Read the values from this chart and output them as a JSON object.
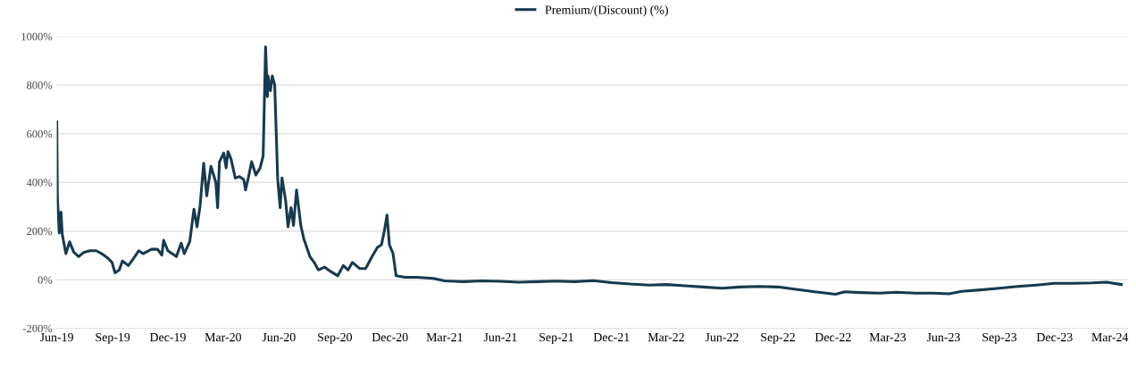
{
  "chart_data": {
    "type": "line",
    "legend": "top",
    "xlim": [
      "2019-06-01",
      "2024-03-31"
    ],
    "xticks": [
      {
        "value": "2019-06-01",
        "label": "Jun-19"
      },
      {
        "value": "2019-09-01",
        "label": "Sep-19"
      },
      {
        "value": "2019-12-01",
        "label": "Dec-19"
      },
      {
        "value": "2020-03-01",
        "label": "Mar-20"
      },
      {
        "value": "2020-06-01",
        "label": "Jun-20"
      },
      {
        "value": "2020-09-01",
        "label": "Sep-20"
      },
      {
        "value": "2020-12-01",
        "label": "Dec-20"
      },
      {
        "value": "2021-03-01",
        "label": "Mar-21"
      },
      {
        "value": "2021-06-01",
        "label": "Jun-21"
      },
      {
        "value": "2021-09-01",
        "label": "Sep-21"
      },
      {
        "value": "2021-12-01",
        "label": "Dec-21"
      },
      {
        "value": "2022-03-01",
        "label": "Mar-22"
      },
      {
        "value": "2022-06-01",
        "label": "Jun-22"
      },
      {
        "value": "2022-09-01",
        "label": "Sep-22"
      },
      {
        "value": "2022-12-01",
        "label": "Dec-22"
      },
      {
        "value": "2023-03-01",
        "label": "Mar-23"
      },
      {
        "value": "2023-06-01",
        "label": "Jun-23"
      },
      {
        "value": "2023-09-01",
        "label": "Sep-23"
      },
      {
        "value": "2023-12-01",
        "label": "Dec-23"
      },
      {
        "value": "2024-03-01",
        "label": "Mar-24"
      }
    ],
    "ylim": [
      -200,
      1000
    ],
    "yticks": [
      {
        "value": -200,
        "label": "-200%"
      },
      {
        "value": 0,
        "label": "0%"
      },
      {
        "value": 200,
        "label": "200%"
      },
      {
        "value": 400,
        "label": "400%"
      },
      {
        "value": 600,
        "label": "600%"
      },
      {
        "value": 800,
        "label": "800%"
      },
      {
        "value": 1000,
        "label": "1000%"
      }
    ],
    "grid": "y",
    "series": [
      {
        "name": "Premium/(Discount) (%)",
        "color": "#163a4f",
        "x": [
          "2019-06-01",
          "2019-06-02",
          "2019-06-05",
          "2019-06-08",
          "2019-06-10",
          "2019-06-16",
          "2019-06-22",
          "2019-06-29",
          "2019-07-07",
          "2019-07-16",
          "2019-07-26",
          "2019-08-05",
          "2019-08-14",
          "2019-08-24",
          "2019-08-31",
          "2019-09-05",
          "2019-09-12",
          "2019-09-17",
          "2019-09-27",
          "2019-10-06",
          "2019-10-14",
          "2019-10-21",
          "2019-11-04",
          "2019-11-14",
          "2019-11-21",
          "2019-11-24",
          "2019-12-01",
          "2019-12-15",
          "2019-12-23",
          "2019-12-28",
          "2020-01-06",
          "2020-01-13",
          "2020-01-18",
          "2020-01-23",
          "2020-01-29",
          "2020-02-03",
          "2020-02-10",
          "2020-02-18",
          "2020-02-21",
          "2020-02-24",
          "2020-03-02",
          "2020-03-06",
          "2020-03-09",
          "2020-03-14",
          "2020-03-21",
          "2020-03-28",
          "2020-04-04",
          "2020-04-07",
          "2020-04-12",
          "2020-04-17",
          "2020-04-24",
          "2020-05-01",
          "2020-05-06",
          "2020-05-10",
          "2020-05-13",
          "2020-05-14",
          "2020-05-18",
          "2020-05-21",
          "2020-05-25",
          "2020-05-30",
          "2020-06-03",
          "2020-06-06",
          "2020-06-12",
          "2020-06-16",
          "2020-06-21",
          "2020-06-25",
          "2020-06-30",
          "2020-07-07",
          "2020-07-12",
          "2020-07-22",
          "2020-07-29",
          "2020-08-05",
          "2020-08-15",
          "2020-08-25",
          "2020-09-06",
          "2020-09-15",
          "2020-09-23",
          "2020-09-30",
          "2020-10-12",
          "2020-10-22",
          "2020-10-31",
          "2020-11-10",
          "2020-11-17",
          "2020-11-22",
          "2020-11-26",
          "2020-11-30",
          "2020-12-06",
          "2020-12-11",
          "2020-12-26",
          "2021-01-15",
          "2021-02-10",
          "2021-03-01",
          "2021-04-01",
          "2021-05-01",
          "2021-06-01",
          "2021-07-01",
          "2021-08-01",
          "2021-09-01",
          "2021-10-01",
          "2021-11-01",
          "2021-12-01",
          "2022-01-01",
          "2022-02-01",
          "2022-03-01",
          "2022-04-01",
          "2022-05-01",
          "2022-06-01",
          "2022-07-01",
          "2022-08-01",
          "2022-09-01",
          "2022-10-01",
          "2022-11-01",
          "2022-12-05",
          "2022-12-20",
          "2023-01-15",
          "2023-02-15",
          "2023-03-15",
          "2023-04-15",
          "2023-05-15",
          "2023-06-10",
          "2023-07-01",
          "2023-08-01",
          "2023-09-01",
          "2023-10-01",
          "2023-11-01",
          "2023-12-01",
          "2024-01-01",
          "2024-02-01",
          "2024-02-25",
          "2024-03-20"
        ],
        "values": [
          649,
          339,
          192,
          278,
          186,
          107,
          156,
          113,
          95,
          113,
          119,
          119,
          107,
          89,
          71,
          28,
          40,
          77,
          58,
          89,
          119,
          107,
          125,
          125,
          101,
          162,
          119,
          95,
          150,
          107,
          156,
          290,
          217,
          302,
          479,
          345,
          466,
          400,
          296,
          485,
          521,
          460,
          527,
          497,
          418,
          424,
          412,
          369,
          424,
          485,
          430,
          460,
          509,
          957,
          753,
          838,
          777,
          838,
          801,
          412,
          296,
          418,
          326,
          217,
          296,
          223,
          369,
          223,
          168,
          95,
          71,
          40,
          52,
          34,
          16,
          58,
          40,
          71,
          46,
          46,
          89,
          132,
          144,
          205,
          266,
          144,
          107,
          16,
          10,
          10,
          5,
          -5,
          -8,
          -5,
          -7,
          -10,
          -8,
          -6,
          -8,
          -4,
          -12,
          -18,
          -22,
          -20,
          -25,
          -30,
          -35,
          -30,
          -28,
          -30,
          -40,
          -50,
          -60,
          -50,
          -53,
          -55,
          -52,
          -55,
          -55,
          -58,
          -48,
          -42,
          -35,
          -28,
          -22,
          -15,
          -15,
          -13,
          -10,
          -20
        ]
      }
    ]
  }
}
